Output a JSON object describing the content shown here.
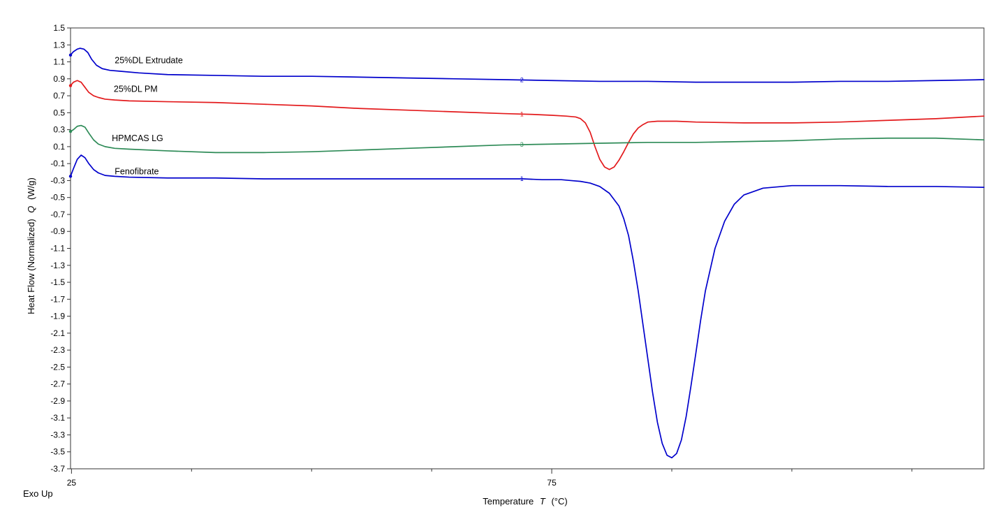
{
  "chart_data": {
    "type": "line",
    "xlabel": "Temperature",
    "xlabel_symbol": "T",
    "xlabel_unit": "(°C)",
    "ylabel": "Heat Flow (Normalized)",
    "ylabel_symbol": "Q",
    "ylabel_unit": "(W/g)",
    "corner_note": "Exo Up",
    "xlim": [
      24.9,
      120
    ],
    "ylim": [
      -3.7,
      1.5
    ],
    "x_tick_labels": [
      25,
      75
    ],
    "x_minor_ticks": [
      37.5,
      50,
      62.5,
      87.5,
      100,
      112.5
    ],
    "y_ticks": [
      1.5,
      1.3,
      1.1,
      0.9,
      0.7,
      0.5,
      0.3,
      0.1,
      -0.1,
      -0.3,
      -0.5,
      -0.7,
      -0.9,
      -1.1,
      -1.3,
      -1.5,
      -1.7,
      -1.9,
      -2.1,
      -2.3,
      -2.5,
      -2.7,
      -2.9,
      -3.1,
      -3.3,
      -3.5,
      -3.7
    ],
    "y_tick_labels": [
      "1.5",
      "1.3",
      "1.1",
      "0.9",
      "0.7",
      "0.5",
      "0.3",
      "0.1",
      "-0.1",
      "-0.3",
      "-0.5",
      "-0.7",
      "-0.9",
      "-1.1",
      "-1.3",
      "-1.5",
      "-1.7",
      "-1.9",
      "-2.1",
      "-2.3",
      "-2.5",
      "-2.7",
      "-2.9",
      "-3.1",
      "-3.3",
      "-3.5",
      "-3.7"
    ],
    "grid": false,
    "series": [
      {
        "name": "25%DL Extrudate",
        "color": "#0000cc",
        "marker_label": "2",
        "marker_x": 72,
        "label_at": [
          29.5,
          1.115
        ],
        "x": [
          24.9,
          25.2,
          25.6,
          25.9,
          26.3,
          26.7,
          27.1,
          27.6,
          28.2,
          29.0,
          30.0,
          32.0,
          35.0,
          40.0,
          45.0,
          50.0,
          55.0,
          60.0,
          65.0,
          70.0,
          75.0,
          80.0,
          85.0,
          90.0,
          95.0,
          100.0,
          105.0,
          110.0,
          115.0,
          120.0
        ],
        "y": [
          1.18,
          1.22,
          1.25,
          1.26,
          1.25,
          1.21,
          1.13,
          1.06,
          1.02,
          1.0,
          0.99,
          0.97,
          0.95,
          0.94,
          0.93,
          0.93,
          0.92,
          0.91,
          0.9,
          0.89,
          0.88,
          0.87,
          0.87,
          0.86,
          0.86,
          0.86,
          0.87,
          0.87,
          0.88,
          0.89
        ]
      },
      {
        "name": "25%DL PM",
        "color": "#e31a1c",
        "marker_label": "1",
        "marker_x": 72,
        "label_at": [
          29.4,
          0.78
        ],
        "x": [
          24.9,
          25.2,
          25.6,
          26.0,
          26.4,
          26.8,
          27.3,
          27.8,
          28.5,
          29.5,
          31.0,
          35.0,
          40.0,
          45.0,
          50.0,
          55.0,
          60.0,
          65.0,
          70.0,
          73.0,
          75.0,
          76.5,
          77.5,
          78.0,
          78.5,
          79.0,
          79.5,
          80.0,
          80.5,
          81.0,
          81.5,
          82.0,
          82.5,
          83.0,
          83.5,
          84.0,
          84.5,
          85.0,
          86.0,
          88.0,
          90.0,
          95.0,
          100.0,
          105.0,
          110.0,
          115.0,
          120.0
        ],
        "y": [
          0.82,
          0.86,
          0.88,
          0.86,
          0.8,
          0.74,
          0.7,
          0.68,
          0.66,
          0.65,
          0.64,
          0.63,
          0.62,
          0.6,
          0.58,
          0.55,
          0.53,
          0.51,
          0.49,
          0.48,
          0.47,
          0.46,
          0.45,
          0.43,
          0.38,
          0.27,
          0.1,
          -0.05,
          -0.14,
          -0.17,
          -0.14,
          -0.06,
          0.04,
          0.15,
          0.25,
          0.32,
          0.36,
          0.39,
          0.4,
          0.4,
          0.39,
          0.38,
          0.38,
          0.39,
          0.41,
          0.43,
          0.46
        ]
      },
      {
        "name": "HPMCAS LG",
        "color": "#2e8b57",
        "marker_label": "3",
        "marker_x": 72,
        "label_at": [
          29.2,
          0.2
        ],
        "x": [
          24.9,
          25.2,
          25.6,
          26.0,
          26.4,
          26.8,
          27.3,
          27.8,
          28.5,
          29.5,
          31.0,
          35.0,
          40.0,
          45.0,
          50.0,
          55.0,
          60.0,
          65.0,
          70.0,
          75.0,
          80.0,
          85.0,
          90.0,
          95.0,
          100.0,
          105.0,
          110.0,
          115.0,
          120.0
        ],
        "y": [
          0.28,
          0.3,
          0.34,
          0.35,
          0.33,
          0.26,
          0.18,
          0.13,
          0.1,
          0.08,
          0.07,
          0.05,
          0.03,
          0.03,
          0.04,
          0.06,
          0.08,
          0.1,
          0.12,
          0.13,
          0.14,
          0.15,
          0.15,
          0.16,
          0.17,
          0.19,
          0.2,
          0.2,
          0.18
        ]
      },
      {
        "name": "Fenofibrate",
        "color": "#0000cc",
        "marker_label": "1",
        "marker_x": 72,
        "label_at": [
          29.5,
          -0.195
        ],
        "x": [
          24.9,
          25.2,
          25.6,
          26.0,
          26.4,
          26.8,
          27.3,
          27.8,
          28.5,
          29.5,
          31.0,
          35.0,
          40.0,
          45.0,
          50.0,
          55.0,
          60.0,
          65.0,
          70.0,
          72.0,
          74.0,
          76.0,
          77.0,
          78.0,
          79.0,
          80.0,
          81.0,
          82.0,
          82.5,
          83.0,
          83.5,
          84.0,
          84.5,
          85.0,
          85.5,
          86.0,
          86.5,
          87.0,
          87.5,
          88.0,
          88.5,
          89.0,
          89.5,
          90.0,
          90.5,
          91.0,
          92.0,
          93.0,
          94.0,
          95.0,
          97.0,
          100.0,
          105.0,
          110.0,
          115.0,
          120.0
        ],
        "y": [
          -0.25,
          -0.16,
          -0.05,
          0.0,
          -0.03,
          -0.1,
          -0.17,
          -0.21,
          -0.24,
          -0.25,
          -0.26,
          -0.27,
          -0.27,
          -0.28,
          -0.28,
          -0.28,
          -0.28,
          -0.28,
          -0.28,
          -0.28,
          -0.29,
          -0.29,
          -0.3,
          -0.31,
          -0.33,
          -0.37,
          -0.45,
          -0.6,
          -0.75,
          -0.95,
          -1.25,
          -1.6,
          -2.0,
          -2.4,
          -2.8,
          -3.15,
          -3.4,
          -3.54,
          -3.57,
          -3.52,
          -3.36,
          -3.08,
          -2.72,
          -2.34,
          -1.95,
          -1.6,
          -1.1,
          -0.78,
          -0.58,
          -0.47,
          -0.39,
          -0.36,
          -0.36,
          -0.37,
          -0.37,
          -0.38
        ]
      }
    ]
  }
}
